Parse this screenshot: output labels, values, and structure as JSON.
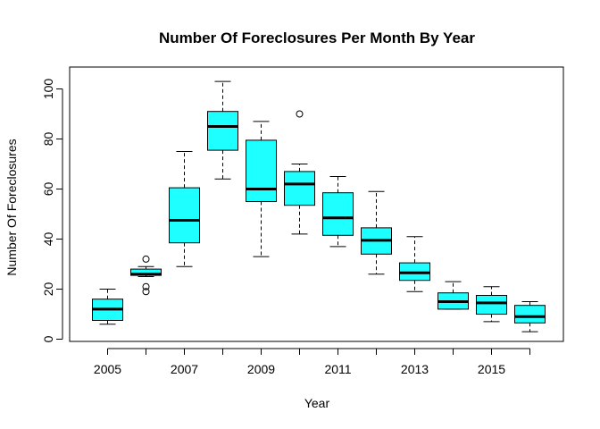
{
  "chart_data": {
    "type": "boxplot",
    "title": "Number Of Foreclosures Per Month By Year",
    "xlabel": "Year",
    "ylabel": "Number Of Foreclosures",
    "ylim": [
      0,
      105
    ],
    "yticks": [
      0,
      20,
      40,
      60,
      80,
      100
    ],
    "box_color": "#1EFFFF",
    "grid": false,
    "categories": [
      "2005",
      "2006",
      "2007",
      "2008",
      "2009",
      "2010",
      "2011",
      "2012",
      "2013",
      "2014",
      "2015",
      "2016"
    ],
    "xtick_labels": [
      "2005",
      "",
      "2007",
      "",
      "2009",
      "",
      "2011",
      "",
      "2013",
      "",
      "2015",
      ""
    ],
    "boxes": [
      {
        "category": "2005",
        "min": 6,
        "q1": 7.5,
        "median": 12,
        "q3": 16,
        "max": 20,
        "outliers": []
      },
      {
        "category": "2006",
        "min": 25,
        "q1": 25.5,
        "median": 26,
        "q3": 28,
        "max": 29,
        "outliers": [
          32,
          21,
          19
        ]
      },
      {
        "category": "2007",
        "min": 29,
        "q1": 38.5,
        "median": 47.5,
        "q3": 60.5,
        "max": 75,
        "outliers": []
      },
      {
        "category": "2008",
        "min": 64,
        "q1": 75.5,
        "median": 85,
        "q3": 91,
        "max": 103,
        "outliers": []
      },
      {
        "category": "2009",
        "min": 33,
        "q1": 55,
        "median": 60,
        "q3": 79.5,
        "max": 87,
        "outliers": []
      },
      {
        "category": "2010",
        "min": 42,
        "q1": 53.5,
        "median": 62,
        "q3": 67,
        "max": 70,
        "outliers": [
          90
        ]
      },
      {
        "category": "2011",
        "min": 37,
        "q1": 41.5,
        "median": 48.5,
        "q3": 58.5,
        "max": 65,
        "outliers": []
      },
      {
        "category": "2012",
        "min": 26,
        "q1": 34,
        "median": 39.5,
        "q3": 44.5,
        "max": 59,
        "outliers": []
      },
      {
        "category": "2013",
        "min": 19,
        "q1": 23.5,
        "median": 26.5,
        "q3": 30.5,
        "max": 41,
        "outliers": []
      },
      {
        "category": "2014",
        "min": 12,
        "q1": 12,
        "median": 15,
        "q3": 18.5,
        "max": 23,
        "outliers": []
      },
      {
        "category": "2015",
        "min": 7,
        "q1": 10,
        "median": 14.5,
        "q3": 17.5,
        "max": 21,
        "outliers": []
      },
      {
        "category": "2016",
        "min": 3,
        "q1": 6.5,
        "median": 9,
        "q3": 13.5,
        "max": 15,
        "outliers": []
      }
    ]
  }
}
